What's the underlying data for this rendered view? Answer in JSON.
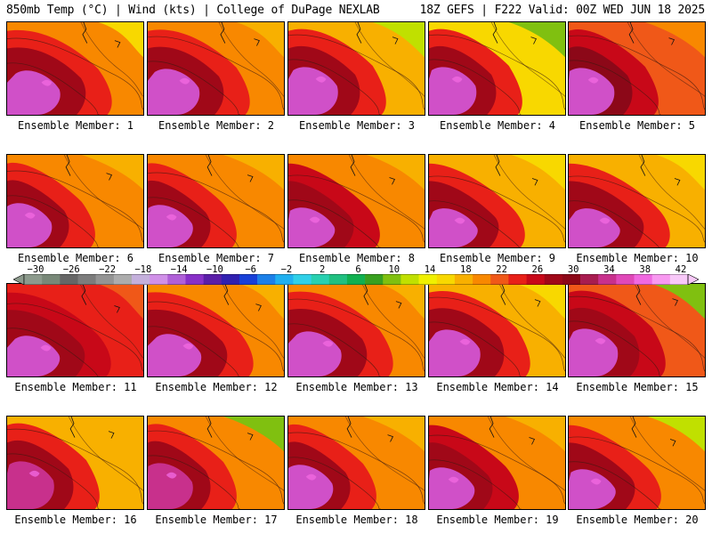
{
  "header": {
    "left": "850mb Temp (°C) | Wind (kts) | College of DuPage NEXLAB",
    "right": "18Z GEFS | F222 Valid: 00Z WED JUN 18 2025"
  },
  "colorbar": {
    "labels": [
      "−30",
      "−26",
      "−22",
      "−18",
      "−14",
      "−10",
      "−6",
      "−2",
      "2",
      "6",
      "10",
      "14",
      "18",
      "22",
      "26",
      "30",
      "34",
      "38",
      "42"
    ],
    "colors": [
      "#8c9a8c",
      "#788878",
      "#666666",
      "#7c7c7c",
      "#949494",
      "#acacac",
      "#c4b0dc",
      "#d090e8",
      "#b060d8",
      "#8830c8",
      "#5a1ea8",
      "#3020b0",
      "#1840d8",
      "#1c80e8",
      "#20b0f0",
      "#30d0e8",
      "#28d0b0",
      "#20c080",
      "#10b050",
      "#38a020",
      "#80c010",
      "#c0e000",
      "#f0f000",
      "#f8d800",
      "#f8b000",
      "#f88800",
      "#f05818",
      "#e82018",
      "#c80818",
      "#a00818",
      "#8c0818",
      "#a81c50",
      "#c8308c",
      "#e048b8",
      "#f068e0",
      "#f898f0",
      "#f8c8f8"
    ]
  },
  "panels": [
    {
      "label": "Ensemble Member: 1"
    },
    {
      "label": "Ensemble Member: 2"
    },
    {
      "label": "Ensemble Member: 3"
    },
    {
      "label": "Ensemble Member: 4"
    },
    {
      "label": "Ensemble Member: 5"
    },
    {
      "label": "Ensemble Member: 6"
    },
    {
      "label": "Ensemble Member: 7"
    },
    {
      "label": "Ensemble Member: 8"
    },
    {
      "label": "Ensemble Member: 9"
    },
    {
      "label": "Ensemble Member: 10"
    },
    {
      "label": "Ensemble Member: 11"
    },
    {
      "label": "Ensemble Member: 12"
    },
    {
      "label": "Ensemble Member: 13"
    },
    {
      "label": "Ensemble Member: 14"
    },
    {
      "label": "Ensemble Member: 15"
    },
    {
      "label": "Ensemble Member: 16"
    },
    {
      "label": "Ensemble Member: 17"
    },
    {
      "label": "Ensemble Member: 18"
    },
    {
      "label": "Ensemble Member: 19"
    },
    {
      "label": "Ensemble Member: 20"
    }
  ]
}
